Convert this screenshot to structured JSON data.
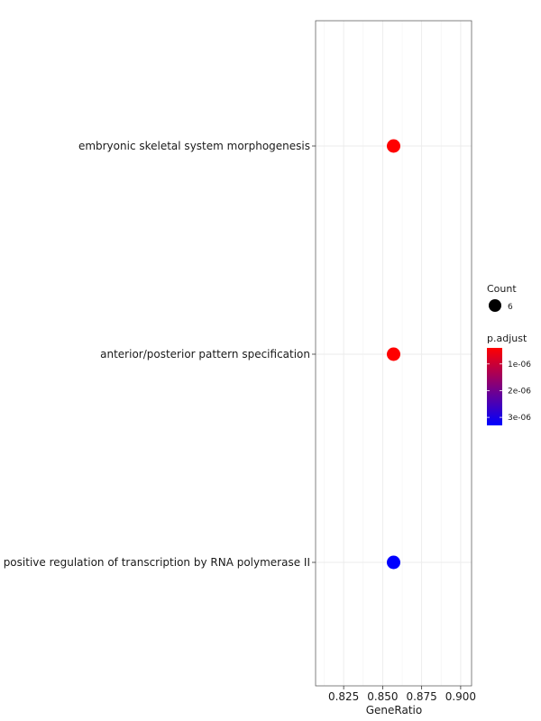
{
  "chart_data": {
    "type": "scatter",
    "title": "",
    "xlabel": "GeneRatio",
    "ylabel": "",
    "xlim": [
      0.807,
      0.907
    ],
    "x_ticks": [
      0.825,
      0.85,
      0.875,
      0.9
    ],
    "x_tick_labels": [
      "0.825",
      "0.850",
      "0.875",
      "0.900"
    ],
    "grid": true,
    "legend_position": "right",
    "categories": [
      "embryonic skeletal system morphogenesis",
      "anterior/posterior pattern specification",
      "positive regulation of transcription by RNA polymerase II"
    ],
    "points": [
      {
        "term": "embryonic skeletal system morphogenesis",
        "GeneRatio": 0.857,
        "Count": 6,
        "p_adjust": 4e-07
      },
      {
        "term": "anterior/posterior pattern specification",
        "GeneRatio": 0.857,
        "Count": 6,
        "p_adjust": 4e-07
      },
      {
        "term": "positive regulation of transcription by RNA polymerase II",
        "GeneRatio": 0.857,
        "Count": 6,
        "p_adjust": 3.3e-06
      }
    ],
    "size_legend": {
      "title": "Count",
      "entries": [
        {
          "label": "6",
          "value": 6
        }
      ]
    },
    "color_legend": {
      "title": "p.adjust",
      "min": 4e-07,
      "max": 3.3e-06,
      "low_color": "#ff0000",
      "high_color": "#0000ff",
      "ticks": [
        {
          "value": 1e-06,
          "label": "1e-06"
        },
        {
          "value": 2e-06,
          "label": "2e-06"
        },
        {
          "value": 3e-06,
          "label": "3e-06"
        }
      ]
    }
  }
}
